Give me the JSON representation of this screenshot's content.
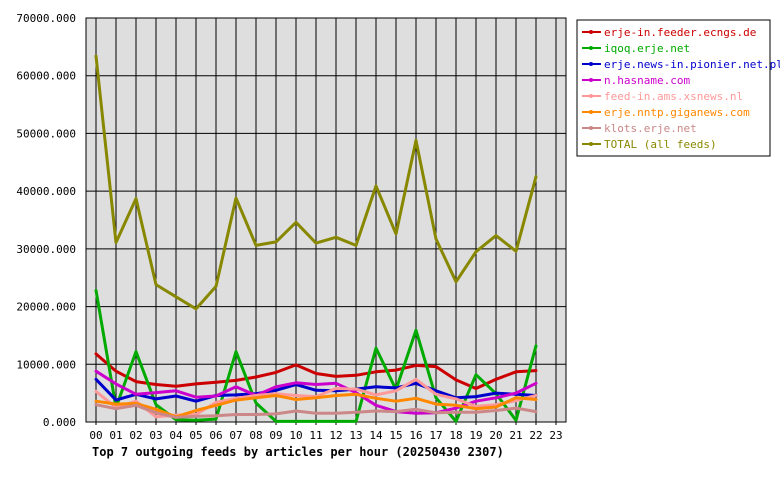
{
  "chart_data": {
    "type": "line",
    "title": "Top 7 outgoing feeds by articles per hour (20250430 2307)",
    "xlabel": "",
    "ylabel": "",
    "ylim": [
      0,
      70000
    ],
    "yticks": [
      "0.000",
      "10000.000",
      "20000.000",
      "30000.000",
      "40000.000",
      "50000.000",
      "60000.000",
      "70000.000"
    ],
    "ytick_values": [
      0,
      10000,
      20000,
      30000,
      40000,
      50000,
      60000,
      70000
    ],
    "x": [
      "00",
      "01",
      "02",
      "03",
      "04",
      "05",
      "06",
      "07",
      "08",
      "09",
      "10",
      "11",
      "12",
      "13",
      "14",
      "15",
      "16",
      "17",
      "18",
      "19",
      "20",
      "21",
      "22",
      "23"
    ],
    "grid": true,
    "legend_position": "right",
    "series": [
      {
        "name": "erje-in.feeder.ecngs.de",
        "color": "#cc0000",
        "values": [
          11800,
          8800,
          7000,
          6500,
          6200,
          6600,
          6900,
          7200,
          7800,
          8600,
          9900,
          8400,
          7900,
          8100,
          8700,
          9000,
          9800,
          9600,
          7300,
          5800,
          7400,
          8700,
          8900,
          null
        ]
      },
      {
        "name": "iqoq.erje.net",
        "color": "#00aa00",
        "values": [
          22800,
          2500,
          12200,
          3000,
          400,
          300,
          500,
          12200,
          3300,
          100,
          100,
          100,
          100,
          100,
          12800,
          5600,
          15900,
          4200,
          100,
          8200,
          4900,
          300,
          13200,
          null
        ]
      },
      {
        "name": "erje.news-in.pionier.net.pl",
        "color": "#0000cc",
        "values": [
          7400,
          3800,
          4800,
          4000,
          4500,
          3600,
          4600,
          4700,
          4900,
          5500,
          6500,
          5500,
          5400,
          5700,
          6100,
          5900,
          6700,
          5400,
          4200,
          4400,
          5000,
          4800,
          4600,
          null
        ]
      },
      {
        "name": "n.hasname.com",
        "color": "#cc00cc",
        "values": [
          8800,
          6600,
          4800,
          5100,
          5400,
          4300,
          4500,
          6100,
          4600,
          6100,
          6800,
          6500,
          6700,
          5100,
          2900,
          1800,
          1500,
          1600,
          2400,
          3600,
          4200,
          5000,
          6700,
          null
        ]
      },
      {
        "name": "feed-in.ams.xsnews.nl",
        "color": "#ff9999",
        "values": [
          5300,
          2500,
          3600,
          900,
          1200,
          1300,
          3400,
          4100,
          4600,
          4900,
          4600,
          4400,
          5800,
          5700,
          4700,
          5400,
          7400,
          4800,
          4000,
          2700,
          3000,
          3700,
          4600,
          null
        ]
      },
      {
        "name": "erje.nntp.giganews.com",
        "color": "#ff8800",
        "values": [
          3600,
          3100,
          3200,
          2200,
          900,
          2000,
          2900,
          3800,
          4200,
          4600,
          3900,
          4200,
          4600,
          4800,
          4100,
          3600,
          4100,
          3100,
          2900,
          2300,
          2600,
          4200,
          3900,
          null
        ]
      },
      {
        "name": "klots.erje.net",
        "color": "#cc8888",
        "values": [
          3000,
          2300,
          2900,
          1600,
          800,
          1000,
          1100,
          1300,
          1300,
          1400,
          1900,
          1500,
          1500,
          1700,
          1900,
          1800,
          2200,
          1600,
          1700,
          1700,
          2000,
          2400,
          1800,
          null
        ]
      },
      {
        "name": "TOTAL (all feeds)",
        "color": "#888800",
        "values": [
          63400,
          31100,
          38700,
          23800,
          21700,
          19600,
          23500,
          38800,
          30600,
          31200,
          34600,
          31000,
          32000,
          30600,
          40900,
          32600,
          48800,
          31700,
          24300,
          29500,
          32300,
          29600,
          42500,
          null
        ]
      }
    ]
  }
}
